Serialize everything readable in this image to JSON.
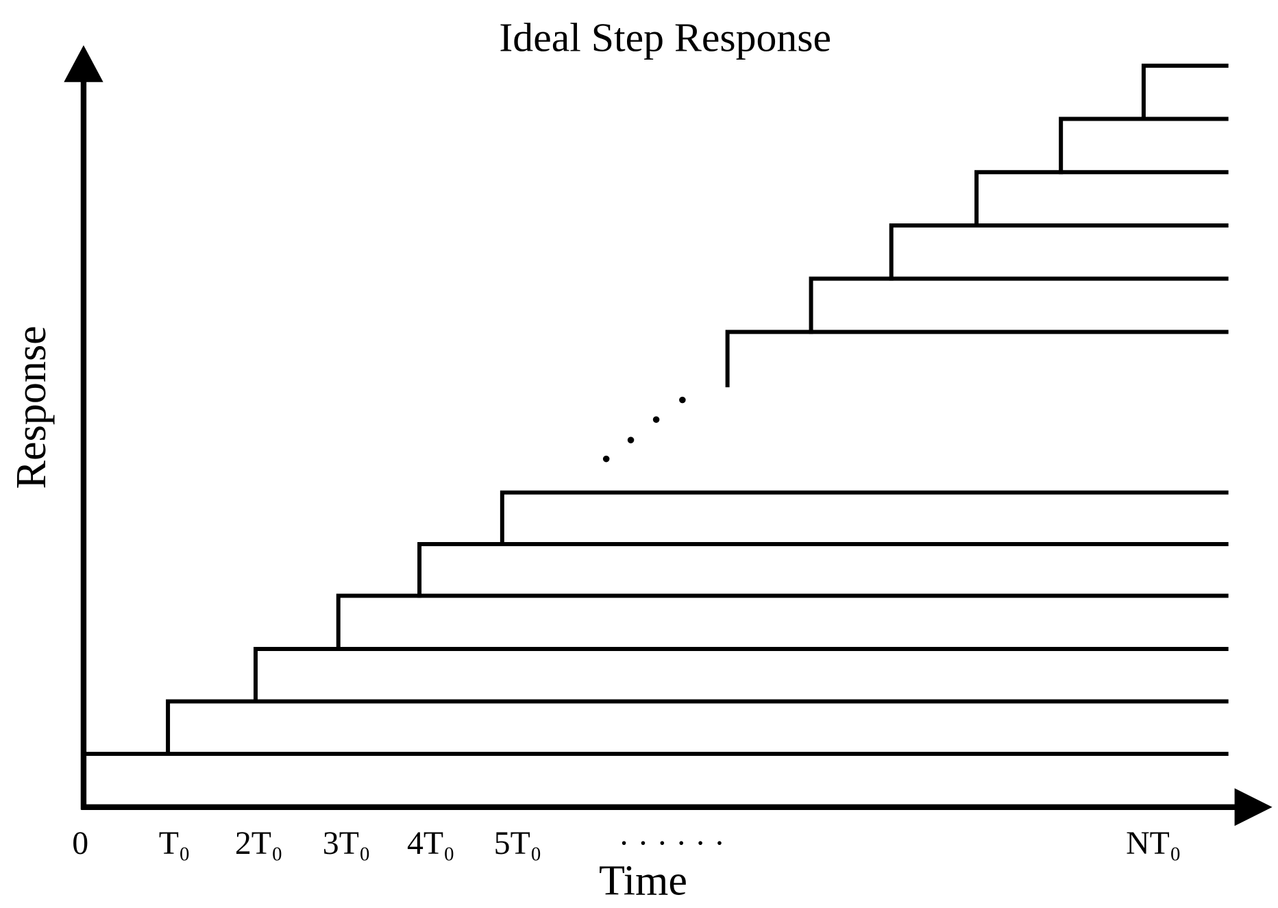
{
  "title": "Ideal Step Response",
  "axes": {
    "x_label": "Time",
    "y_label": "Response"
  },
  "x_ticks": [
    "0",
    "T₀",
    "2T₀",
    "3T₀",
    "4T₀",
    "5T₀",
    "· · · · · ·",
    "NT₀"
  ]
}
